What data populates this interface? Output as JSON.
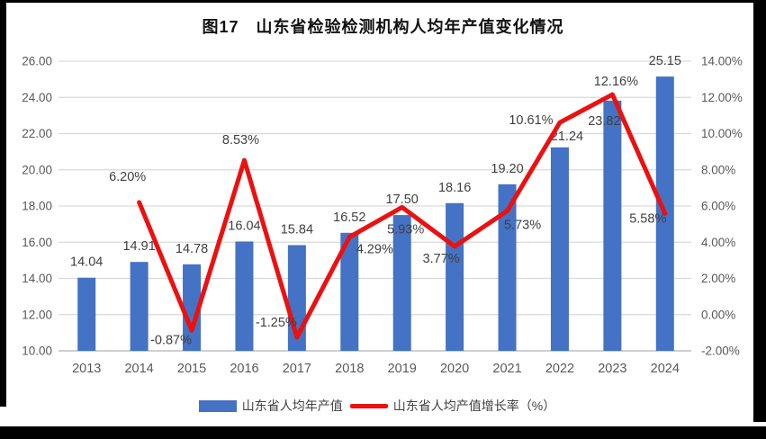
{
  "figure": {
    "title": "图17　山东省检验检测机构人均年产值变化情况"
  },
  "chart_data": {
    "type": "combo-bar-line",
    "title": "图17　山东省检验检测机构人均年产值变化情况",
    "categories": [
      "2013",
      "2014",
      "2015",
      "2016",
      "2017",
      "2018",
      "2019",
      "2020",
      "2021",
      "2022",
      "2023",
      "2024"
    ],
    "series": [
      {
        "name": "山东省人均年产值",
        "type": "bar",
        "axis": "left",
        "values": [
          14.04,
          14.91,
          14.78,
          16.04,
          15.84,
          16.52,
          17.5,
          18.16,
          19.2,
          21.24,
          23.82,
          25.15
        ],
        "labels": [
          "14.04",
          "14.91",
          "14.78",
          "16.04",
          "15.84",
          "16.52",
          "17.50",
          "18.16",
          "19.20",
          "21.24",
          "23.82",
          "25.15"
        ]
      },
      {
        "name": "山东省人均产值增长率（%）",
        "type": "line",
        "axis": "right",
        "values": [
          null,
          6.2,
          -0.87,
          8.53,
          -1.25,
          4.29,
          5.93,
          3.77,
          5.73,
          10.61,
          12.16,
          5.58
        ],
        "labels": [
          "",
          "6.20%",
          "-0.87%",
          "8.53%",
          "-1.25%",
          "4.29%",
          "5.93%",
          "3.77%",
          "5.73%",
          "10.61%",
          "12.16%",
          "5.58%"
        ]
      }
    ],
    "left_axis": {
      "min": 10,
      "max": 26,
      "step": 2,
      "ticks": [
        "26.00",
        "24.00",
        "22.00",
        "20.00",
        "18.00",
        "16.00",
        "14.00",
        "12.00",
        "10.00"
      ]
    },
    "right_axis": {
      "min": -2,
      "max": 14,
      "step": 2,
      "ticks": [
        "14.00%",
        "12.00%",
        "10.00%",
        "8.00%",
        "6.00%",
        "4.00%",
        "2.00%",
        "0.00%",
        "-2.00%"
      ]
    },
    "grid": true,
    "legend_position": "bottom",
    "colors": {
      "bar": "#4472C4",
      "line": "#EC1010",
      "grid": "#D9D9D9",
      "axis_line": "#BFBFBF",
      "axis_text": "#595959",
      "label_text": "#404040",
      "title_text": "#111111",
      "background": "#FFFFFF",
      "border": "#000000"
    }
  }
}
